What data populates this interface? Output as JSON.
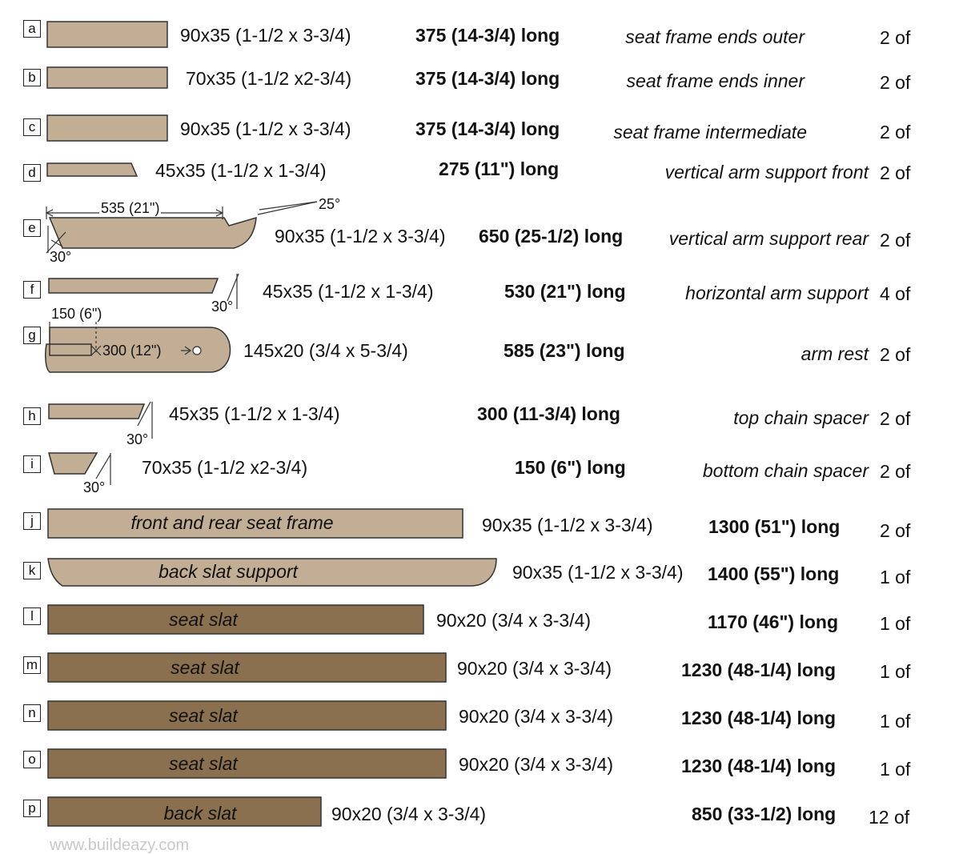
{
  "colors": {
    "light_wood": "#c1ae94",
    "dark_wood": "#8a704e",
    "outline": "#333333"
  },
  "parts": [
    {
      "letter": "a",
      "dims": "90x35 (1-1/2 x 3-3/4)",
      "length": "375 (14-3/4) long",
      "desc": "seat frame ends outer",
      "qty": "2 of"
    },
    {
      "letter": "b",
      "dims": "70x35 (1-1/2 x2-3/4)",
      "length": "375 (14-3/4) long",
      "desc": "seat frame ends inner",
      "qty": "2 of"
    },
    {
      "letter": "c",
      "dims": "90x35 (1-1/2 x 3-3/4)",
      "length": "375 (14-3/4) long",
      "desc": "seat frame intermediate",
      "qty": "2 of"
    },
    {
      "letter": "d",
      "dims": "45x35 (1-1/2 x 1-3/4)",
      "length": "275 (11\") long",
      "desc": "vertical arm support front",
      "qty": "2 of"
    },
    {
      "letter": "e",
      "dims": "90x35 (1-1/2 x 3-3/4)",
      "length": "650 (25-1/2) long",
      "desc": "vertical arm support rear",
      "qty": "2 of"
    },
    {
      "letter": "f",
      "dims": "45x35 (1-1/2 x 1-3/4)",
      "length": "530 (21\") long",
      "desc": "horizontal arm support",
      "qty": "4 of"
    },
    {
      "letter": "g",
      "dims": "145x20 (3/4 x 5-3/4)",
      "length": "585 (23\") long",
      "desc": "arm rest",
      "qty": "2 of"
    },
    {
      "letter": "h",
      "dims": "45x35 (1-1/2 x 1-3/4)",
      "length": "300 (11-3/4) long",
      "desc": "top chain spacer",
      "qty": "2 of"
    },
    {
      "letter": "i",
      "dims": "70x35 (1-1/2 x2-3/4)",
      "length": "150 (6\") long",
      "desc": "bottom chain spacer",
      "qty": "2 of"
    },
    {
      "letter": "j",
      "label": "front and rear seat frame",
      "dims": "90x35 (1-1/2 x 3-3/4)",
      "length": "1300 (51\") long",
      "qty": "2 of"
    },
    {
      "letter": "k",
      "label": "back slat support",
      "dims": "90x35 (1-1/2 x 3-3/4)",
      "length": "1400 (55\") long",
      "qty": "1 of"
    },
    {
      "letter": "l",
      "label": "seat slat",
      "dims": "90x20 (3/4 x 3-3/4)",
      "length": "1170 (46\") long",
      "qty": "1 of"
    },
    {
      "letter": "m",
      "label": "seat slat",
      "dims": "90x20 (3/4 x 3-3/4)",
      "length": "1230 (48-1/4) long",
      "qty": "1 of"
    },
    {
      "letter": "n",
      "label": "seat slat",
      "dims": "90x20 (3/4 x 3-3/4)",
      "length": "1230 (48-1/4) long",
      "qty": "1 of"
    },
    {
      "letter": "o",
      "label": "seat slat",
      "dims": "90x20 (3/4 x 3-3/4)",
      "length": "1230 (48-1/4) long",
      "qty": "1 of"
    },
    {
      "letter": "p",
      "label": "back slat",
      "dims": "90x20 (3/4 x 3-3/4)",
      "length": "850 (33-1/2) long",
      "qty": "12 of"
    }
  ],
  "annotations": {
    "e_length": "535 (21\")",
    "e_top_angle": "25°",
    "e_bottom_angle": "30°",
    "f_angle": "30°",
    "g_offset": "150 (6\")",
    "g_hole_spacing": "300 (12\")",
    "h_angle": "30°",
    "i_angle": "30°"
  },
  "footer": "www.buildeazy.com"
}
